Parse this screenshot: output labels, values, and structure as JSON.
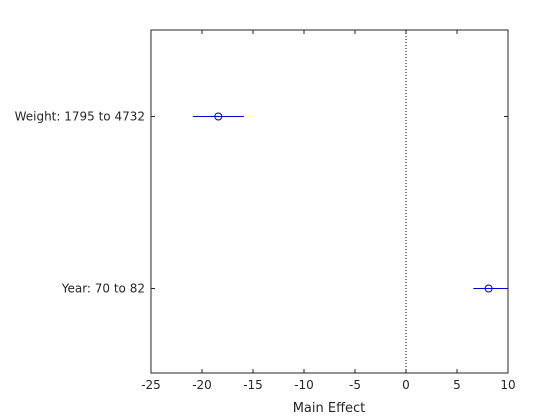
{
  "chart_data": {
    "type": "scatter",
    "title": "",
    "xlabel": "Main Effect",
    "ylabel": "",
    "xlim": [
      -25,
      10
    ],
    "xticks": [
      -25,
      -20,
      -15,
      -10,
      -5,
      0,
      5,
      10
    ],
    "grid": false,
    "reference_line": {
      "x": 0,
      "style": "dotted"
    },
    "categories": [
      "Weight: 1795 to 4732",
      "Year: 70 to 82"
    ],
    "series": [
      {
        "points": [
          {
            "category": "Weight: 1795 to 4732",
            "effect": -18.4,
            "ci_low": -20.9,
            "ci_high": -15.9
          },
          {
            "category": "Year: 70 to 82",
            "effect": 8.1,
            "ci_low": 6.6,
            "ci_high": 10.0
          }
        ]
      }
    ],
    "colors": {
      "marker": "#0000cc",
      "axis": "#262626",
      "reference": "#000000"
    }
  }
}
